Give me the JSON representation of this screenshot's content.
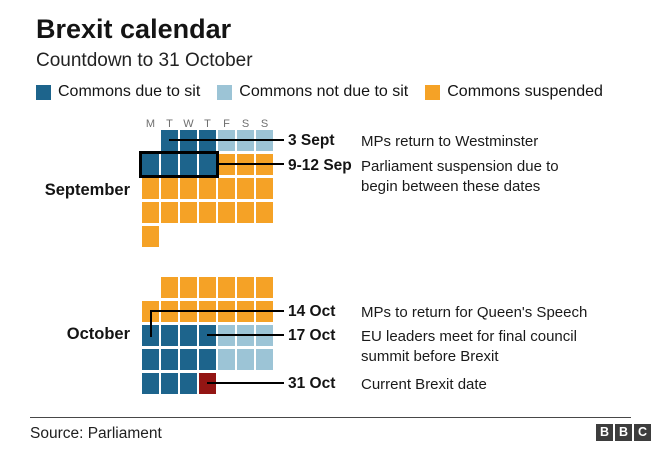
{
  "header": {
    "title": "Brexit calendar",
    "subtitle": "Countdown to 31 October"
  },
  "legend": [
    {
      "label": "Commons due to sit",
      "color": "#1d648c"
    },
    {
      "label": "Commons not due to sit",
      "color": "#9cc4d6"
    },
    {
      "label": "Commons suspended",
      "color": "#f5a226"
    }
  ],
  "chart_data": {
    "type": "heatmap",
    "title": "Brexit calendar",
    "subtitle": "Countdown to 31 October",
    "legend_entries": [
      "Commons due to sit",
      "Commons not due to sit",
      "Commons suspended"
    ],
    "day_columns": [
      "M",
      "T",
      "W",
      "T",
      "F",
      "S",
      "S"
    ],
    "status_colors": {
      "sit": "#1d648c",
      "not_sit": "#9cc4d6",
      "susp": "#f5a226",
      "brexit": "#931513"
    },
    "months": [
      {
        "name": "September",
        "weeks": [
          [
            null,
            "sit",
            "sit",
            "sit",
            "not_sit",
            "not_sit",
            "not_sit"
          ],
          [
            "sit",
            "sit",
            "sit",
            "sit",
            "susp",
            "susp",
            "susp"
          ],
          [
            "susp",
            "susp",
            "susp",
            "susp",
            "susp",
            "susp",
            "susp"
          ],
          [
            "susp",
            "susp",
            "susp",
            "susp",
            "susp",
            "susp",
            "susp"
          ],
          [
            "susp",
            null,
            null,
            null,
            null,
            null,
            null
          ]
        ],
        "highlight_outline": "9-12 Sep"
      },
      {
        "name": "October",
        "weeks": [
          [
            null,
            "susp",
            "susp",
            "susp",
            "susp",
            "susp",
            "susp"
          ],
          [
            "susp",
            "susp",
            "susp",
            "susp",
            "susp",
            "susp",
            "susp"
          ],
          [
            "sit",
            "sit",
            "sit",
            "sit",
            "not_sit",
            "not_sit",
            "not_sit"
          ],
          [
            "sit",
            "sit",
            "sit",
            "sit",
            "not_sit",
            "not_sit",
            "not_sit"
          ],
          [
            "sit",
            "sit",
            "sit",
            "brexit",
            null,
            null,
            null
          ]
        ]
      }
    ],
    "annotations": [
      {
        "date": "3 Sept",
        "text": "MPs return to Westminster"
      },
      {
        "date": "9-12 Sep",
        "text": "Parliament suspension due to begin between these dates"
      },
      {
        "date": "14 Oct",
        "text": "MPs to return for Queen's Speech"
      },
      {
        "date": "17 Oct",
        "text": "EU leaders meet for final council summit before Brexit"
      },
      {
        "date": "31 Oct",
        "text": "Current Brexit date"
      }
    ]
  },
  "footer": {
    "source": "Source: Parliament",
    "logo_letters": [
      "B",
      "B",
      "C"
    ]
  }
}
